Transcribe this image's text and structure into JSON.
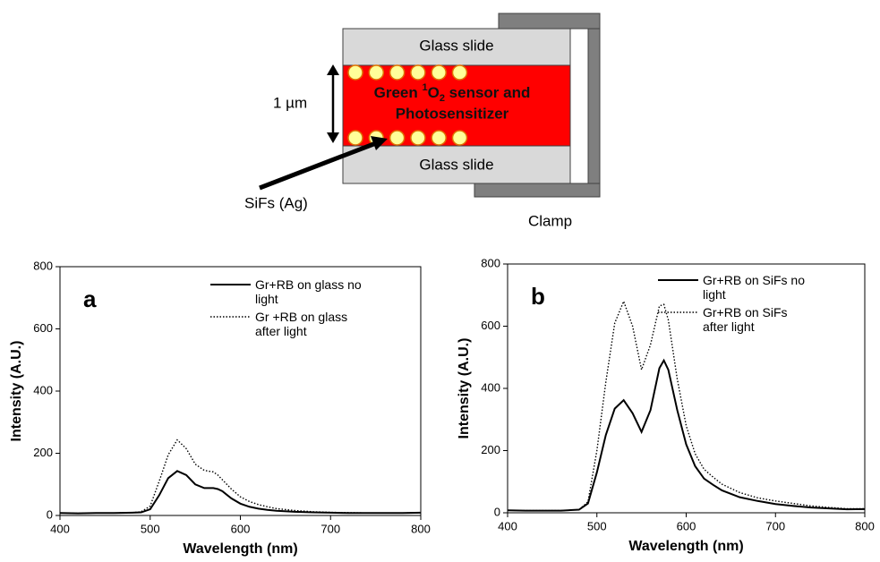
{
  "diagram": {
    "top_slide": "Glass slide",
    "bottom_slide": "Glass slide",
    "thickness": "1 µm",
    "sensor_line1": [
      "Green ",
      "1",
      "O",
      "2",
      " sensor and"
    ],
    "sensor_line2": "Photosensitizer",
    "particles": "SiFs (Ag)",
    "clamp": "Clamp"
  },
  "chart_data": [
    {
      "type": "line",
      "panel": "a",
      "xlabel": "Wavelength (nm)",
      "ylabel": "Intensity (A.U.)",
      "xlim": [
        400,
        800
      ],
      "xticks": [
        400,
        500,
        600,
        700,
        800
      ],
      "ylim": [
        0,
        800
      ],
      "yticks": [
        0,
        200,
        400,
        600,
        800
      ],
      "x": [
        400,
        420,
        440,
        460,
        480,
        490,
        500,
        510,
        520,
        530,
        540,
        550,
        560,
        570,
        575,
        580,
        590,
        600,
        610,
        620,
        630,
        640,
        660,
        680,
        700,
        720,
        740,
        760,
        780,
        800
      ],
      "series": [
        {
          "name": "Gr+RB on glass no light",
          "color": "#000000",
          "line_style": "solid",
          "values": [
            8,
            7,
            8,
            8,
            9,
            10,
            20,
            65,
            120,
            143,
            130,
            100,
            88,
            88,
            85,
            78,
            55,
            38,
            28,
            22,
            18,
            15,
            12,
            10,
            9,
            8,
            8,
            8,
            8,
            9
          ]
        },
        {
          "name": "Gr +RB on glass after light",
          "color": "#000000",
          "line_style": "dotted",
          "values": [
            8,
            7,
            8,
            8,
            9,
            12,
            30,
            110,
            195,
            243,
            215,
            165,
            145,
            140,
            130,
            115,
            85,
            60,
            45,
            35,
            28,
            22,
            16,
            12,
            10,
            9,
            8,
            8,
            8,
            9
          ]
        }
      ]
    },
    {
      "type": "line",
      "panel": "b",
      "xlabel": "Wavelength (nm)",
      "ylabel": "Intensity (A.U.)",
      "xlim": [
        400,
        800
      ],
      "xticks": [
        400,
        500,
        600,
        700,
        800
      ],
      "ylim": [
        0,
        800
      ],
      "yticks": [
        0,
        200,
        400,
        600,
        800
      ],
      "x": [
        400,
        420,
        440,
        460,
        480,
        490,
        500,
        510,
        520,
        530,
        540,
        550,
        560,
        570,
        575,
        580,
        590,
        600,
        610,
        620,
        630,
        640,
        660,
        680,
        700,
        720,
        740,
        760,
        780,
        800
      ],
      "series": [
        {
          "name": "Gr+RB on SiFs no light",
          "color": "#000000",
          "line_style": "solid",
          "values": [
            8,
            7,
            7,
            7,
            10,
            30,
            130,
            250,
            335,
            362,
            320,
            260,
            330,
            465,
            490,
            460,
            330,
            220,
            150,
            110,
            90,
            72,
            50,
            38,
            28,
            22,
            17,
            14,
            11,
            12
          ]
        },
        {
          "name": "Gr+RB on SiFs after light",
          "color": "#000000",
          "line_style": "dotted",
          "values": [
            8,
            7,
            7,
            7,
            10,
            35,
            200,
            420,
            610,
            680,
            600,
            460,
            540,
            665,
            670,
            620,
            430,
            280,
            190,
            140,
            115,
            92,
            65,
            48,
            38,
            30,
            22,
            17,
            13,
            13
          ]
        }
      ]
    }
  ]
}
